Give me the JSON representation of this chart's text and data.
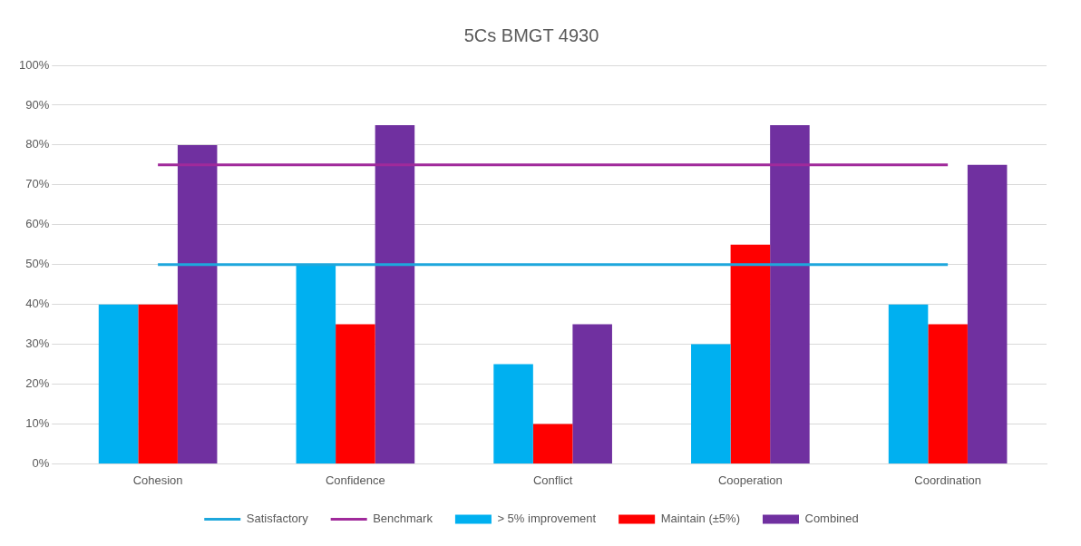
{
  "chart_data": {
    "type": "bar",
    "title": "5Cs BMGT 4930",
    "categories": [
      "Cohesion",
      "Confidence",
      "Conflict",
      "Cooperation",
      "Coordination"
    ],
    "series": [
      {
        "name": "> 5% improvement",
        "color": "#00b0f0",
        "values": [
          40,
          50,
          25,
          30,
          40
        ]
      },
      {
        "name": "Maintain (±5%)",
        "color": "#ff0000",
        "values": [
          40,
          35,
          10,
          55,
          35
        ]
      },
      {
        "name": "Combined",
        "color": "#7030a0",
        "values": [
          80,
          85,
          35,
          85,
          75
        ]
      },
      {
        "name": "Satisfactory",
        "type": "line",
        "color": "#1ea7dc",
        "values": [
          50,
          50,
          50,
          50,
          50
        ]
      },
      {
        "name": "Benchmark",
        "type": "line",
        "color": "#a02a9b",
        "values": [
          75,
          75,
          75,
          75,
          75
        ]
      }
    ],
    "ylim": [
      0,
      100
    ],
    "yticks": [
      {
        "value": 0,
        "label": "0%"
      },
      {
        "value": 10,
        "label": "10%"
      },
      {
        "value": 20,
        "label": "20%"
      },
      {
        "value": 30,
        "label": "30%"
      },
      {
        "value": 40,
        "label": "40%"
      },
      {
        "value": 50,
        "label": "50%"
      },
      {
        "value": 60,
        "label": "60%"
      },
      {
        "value": 70,
        "label": "70%"
      },
      {
        "value": 80,
        "label": "80%"
      },
      {
        "value": 90,
        "label": "90%"
      },
      {
        "value": 100,
        "label": "100%"
      }
    ],
    "grid": "y",
    "legend": "bottom",
    "marker": "none",
    "line_style": "solid"
  }
}
